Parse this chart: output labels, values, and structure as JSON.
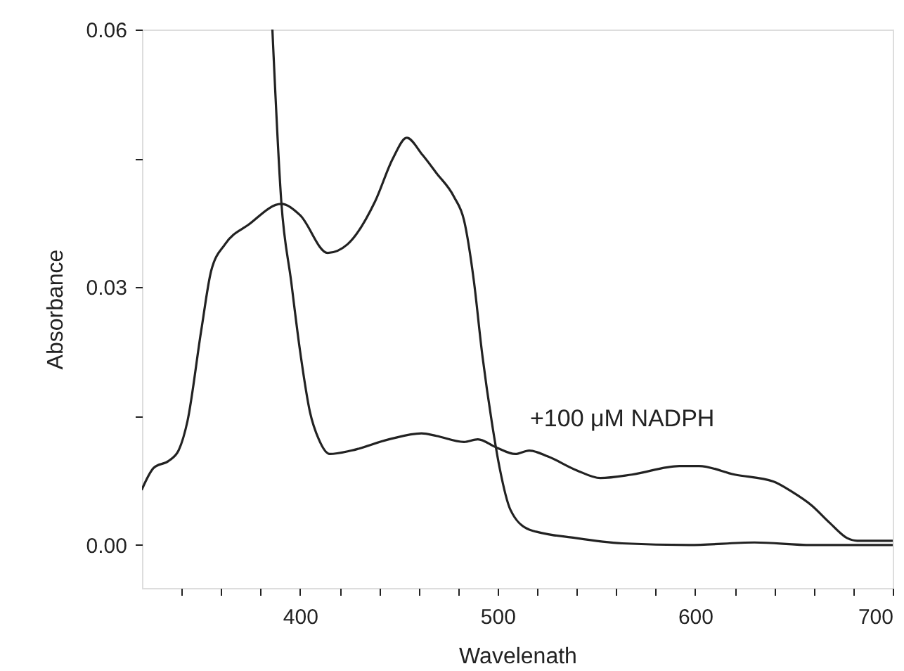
{
  "chart_data": {
    "type": "line",
    "xlabel": "Wavelenath",
    "ylabel": "Absorbance",
    "xlim": [
      320,
      700
    ],
    "ylim": [
      -0.005,
      0.06
    ],
    "xticks": [
      {
        "value": 340,
        "label": null
      },
      {
        "value": 360,
        "label": null
      },
      {
        "value": 380,
        "label": null
      },
      400,
      {
        "value": 420,
        "label": null
      },
      {
        "value": 440,
        "label": null
      },
      {
        "value": 460,
        "label": null
      },
      {
        "value": 480,
        "label": null
      },
      500,
      {
        "value": 520,
        "label": null
      },
      {
        "value": 540,
        "label": null
      },
      {
        "value": 560,
        "label": null
      },
      {
        "value": 580,
        "label": null
      },
      600,
      {
        "value": 620,
        "label": null
      },
      {
        "value": 640,
        "label": null
      },
      {
        "value": 660,
        "label": null
      },
      {
        "value": 680,
        "label": null
      },
      700
    ],
    "yticks": [
      {
        "value": 0,
        "label": "0.00"
      },
      {
        "value": 0.015,
        "label": null
      },
      {
        "value": 0.03,
        "label": "0.03"
      },
      {
        "value": 0.045,
        "label": null
      },
      {
        "value": 0.06,
        "label": "0.06"
      }
    ],
    "grid": false,
    "marker": "none",
    "line_style": "solid",
    "series": [
      {
        "color": "#222222",
        "x": [
          320,
          326,
          333.5,
          338.5,
          343,
          350,
          355,
          362,
          374,
          390.5,
          400,
          414,
          424,
          438,
          447,
          454,
          462,
          469,
          478,
          483,
          488,
          492,
          497,
          501,
          506.5,
          516,
          540,
          563,
          597,
          630,
          659,
          693,
          700
        ],
        "values": [
          0.0065,
          0.009,
          0.0098,
          0.011,
          0.0144,
          0.025,
          0.0319,
          0.035,
          0.0373,
          0.0397,
          0.0384,
          0.034,
          0.035,
          0.04,
          0.045,
          0.0474,
          0.0454,
          0.0433,
          0.0405,
          0.0378,
          0.0307,
          0.0226,
          0.0144,
          0.009,
          0.0041,
          0.0018,
          0.0008,
          0.0002,
          0,
          0.0003,
          0,
          0,
          0
        ]
      },
      {
        "color": "#222222",
        "x": [
          386,
          390.5,
          395.5,
          400,
          405,
          409.5,
          415,
          426,
          445,
          461.5,
          469,
          483,
          490,
          499,
          509,
          516,
          525.5,
          540,
          552,
          568,
          592,
          602,
          620,
          639.5,
          649,
          659,
          668,
          677,
          682,
          693,
          700
        ],
        "values": [
          0.06,
          0.04,
          0.0307,
          0.0226,
          0.0155,
          0.0123,
          0.0106,
          0.011,
          0.0123,
          0.013,
          0.0127,
          0.012,
          0.0123,
          0.0114,
          0.0106,
          0.011,
          0.0103,
          0.0087,
          0.0078,
          0.0082,
          0.0092,
          0.0092,
          0.0082,
          0.0074,
          0.0062,
          0.0046,
          0.0026,
          0.0008,
          0.0005,
          0.0005,
          0.0005
        ]
      }
    ],
    "annotations": [
      "+100 μM NADPH"
    ]
  }
}
